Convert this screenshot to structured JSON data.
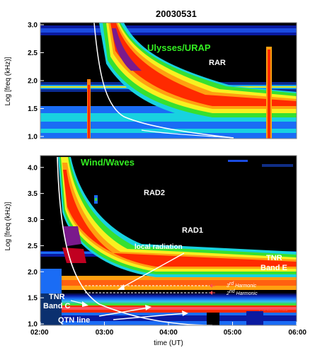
{
  "chart_data": [
    {
      "type": "heatmap",
      "title": "20030531",
      "instrument_label": "Ulysses/URAP",
      "receiver_label": "RAR",
      "ylabel": "Log [freq (kHz)]",
      "y_ticks": [
        "1.0",
        "1.5",
        "2.0",
        "2.5",
        "3.0"
      ],
      "ylim": [
        1.0,
        3.0
      ],
      "x_ticks": [],
      "xlim": [
        "02:00",
        "06:00"
      ],
      "colormap": [
        "#000000",
        "#0a1aa0",
        "#1a6cf5",
        "#18d2e0",
        "#36e030",
        "#f8f020",
        "#ffa010",
        "#ff2a00",
        "#c00020",
        "#7a1a8c"
      ]
    },
    {
      "type": "heatmap",
      "instrument_label": "Wind/Waves",
      "ylabel": "Log [freq (kHz)]",
      "y_ticks": [
        "1.0",
        "1.5",
        "2.0",
        "2.5",
        "3.0",
        "3.5",
        "4.0"
      ],
      "ylim": [
        1.0,
        4.2
      ],
      "x_ticks": [
        "02:00",
        "03:00",
        "04:00",
        "05:00",
        "06:00"
      ],
      "xlim": [
        "02:00",
        "06:00"
      ],
      "xlabel": "time (UT)",
      "annotations": {
        "rad2": "RAD2",
        "rad1": "RAD1",
        "local": "local radiation",
        "tnr_e1": "TNR",
        "tnr_e2": "Band E",
        "tnr_c1": "TNR",
        "tnr_c2": "Band C",
        "qtn": "QTN line",
        "h3a": "3",
        "h3b": "rd",
        "h3c": " Harmonic",
        "h2a": "2",
        "h2b": "nd",
        "h2c": " Harmonic",
        "fund": "Fundamental"
      }
    }
  ]
}
